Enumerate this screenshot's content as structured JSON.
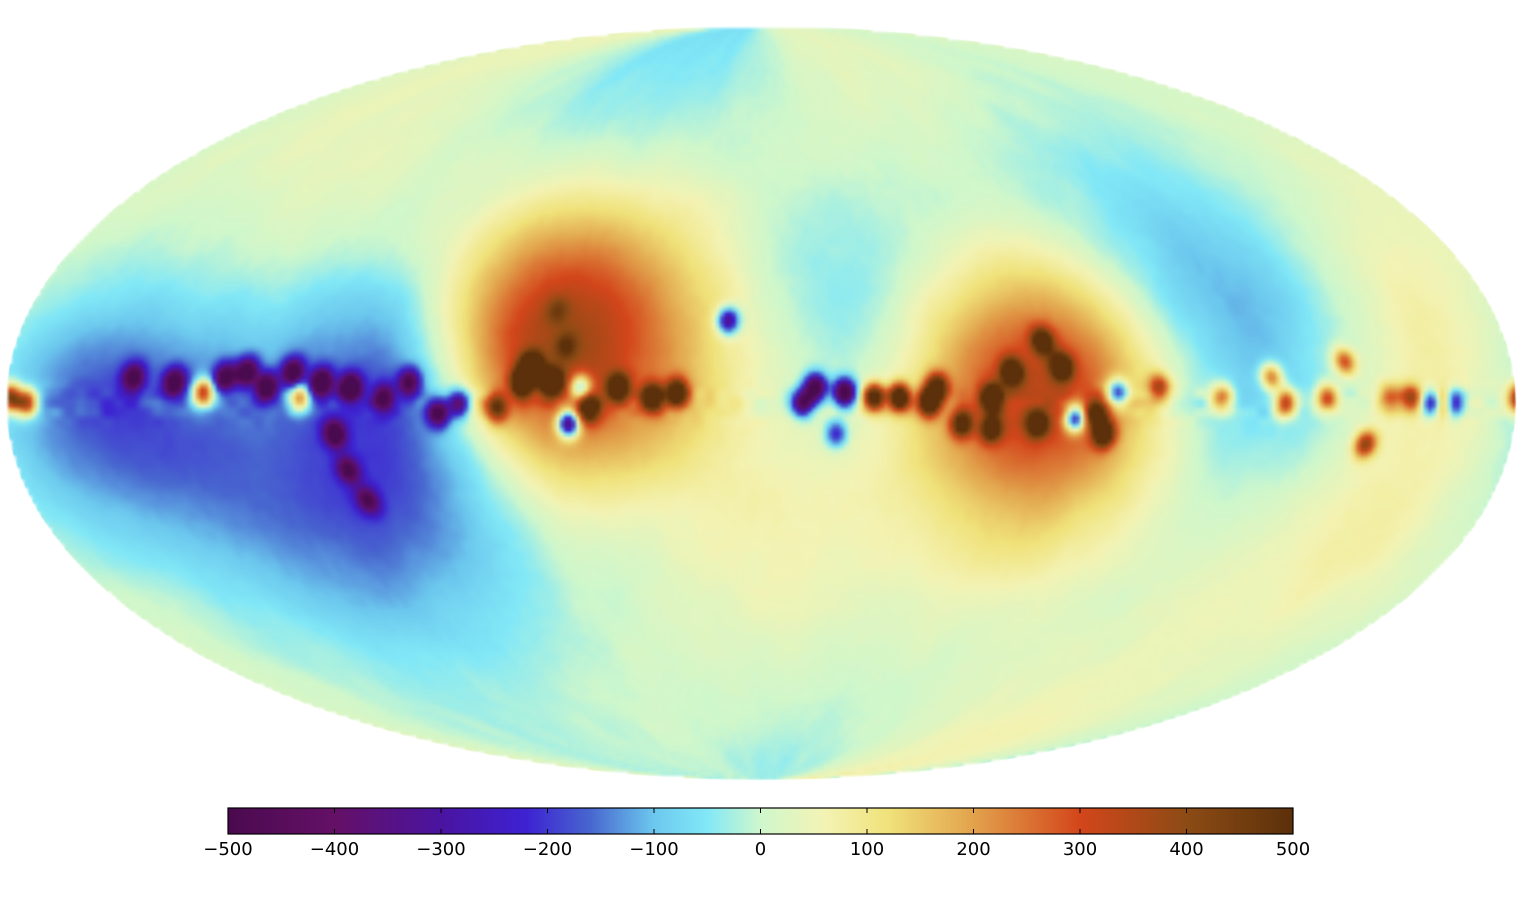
{
  "chart_data": {
    "type": "heatmap",
    "projection": "mollweide",
    "title": "",
    "colorbar": {
      "orientation": "horizontal",
      "placement": "bottom",
      "vmin": -500,
      "vmax": 500,
      "ticks": [
        -500,
        -400,
        -300,
        -200,
        -100,
        0,
        100,
        200,
        300,
        400,
        500
      ],
      "tick_labels": [
        "−500",
        "−400",
        "−300",
        "−200",
        "−100",
        "0",
        "100",
        "200",
        "300",
        "400",
        "500"
      ],
      "colormap": [
        [
          0.0,
          "#4a0a4f"
        ],
        [
          0.1,
          "#641066"
        ],
        [
          0.2,
          "#4a14a0"
        ],
        [
          0.28,
          "#3d22d2"
        ],
        [
          0.34,
          "#4866cf"
        ],
        [
          0.4,
          "#6cc8ee"
        ],
        [
          0.45,
          "#82e8f7"
        ],
        [
          0.5,
          "#cff7cc"
        ],
        [
          0.56,
          "#f3f3b4"
        ],
        [
          0.62,
          "#f0e27a"
        ],
        [
          0.7,
          "#e2a24c"
        ],
        [
          0.8,
          "#d3461b"
        ],
        [
          0.9,
          "#8c4b15"
        ],
        [
          1.0,
          "#5c300a"
        ]
      ]
    },
    "sources": [
      {
        "lon": 179,
        "lat": 1,
        "value": 380
      },
      {
        "lon": 175,
        "lat": 0,
        "value": 340
      },
      {
        "lon": 150,
        "lat": 5,
        "value": -330
      },
      {
        "lon": 140,
        "lat": 4,
        "value": -380
      },
      {
        "lon": 133,
        "lat": 2,
        "value": 370
      },
      {
        "lon": 128,
        "lat": 5,
        "value": -360
      },
      {
        "lon": 123,
        "lat": 6,
        "value": -400
      },
      {
        "lon": 118,
        "lat": 3,
        "value": -420
      },
      {
        "lon": 112,
        "lat": 6,
        "value": -380
      },
      {
        "lon": 105,
        "lat": 4,
        "value": -420
      },
      {
        "lon": 98,
        "lat": 3,
        "value": -440
      },
      {
        "lon": 102,
        "lat": -6,
        "value": -360
      },
      {
        "lon": 100,
        "lat": -13,
        "value": -280
      },
      {
        "lon": 97,
        "lat": -19,
        "value": -260
      },
      {
        "lon": 84,
        "lat": 4,
        "value": -320
      },
      {
        "lon": 77,
        "lat": -2,
        "value": -360
      },
      {
        "lon": 72,
        "lat": 0,
        "value": -300
      },
      {
        "lon": 63,
        "lat": -1,
        "value": 280
      },
      {
        "lon": 57,
        "lat": 4,
        "value": 440
      },
      {
        "lon": 55,
        "lat": 7,
        "value": 460
      },
      {
        "lon": 50,
        "lat": 4,
        "value": 430
      },
      {
        "lon": 47,
        "lat": 11,
        "value": 120
      },
      {
        "lon": 50,
        "lat": 18,
        "value": 90
      },
      {
        "lon": 46,
        "lat": -4,
        "value": -460
      },
      {
        "lon": 43,
        "lat": 3,
        "value": -280
      },
      {
        "lon": 41,
        "lat": -1,
        "value": 340
      },
      {
        "lon": 34,
        "lat": 3,
        "value": 360
      },
      {
        "lon": 26,
        "lat": 1,
        "value": 420
      },
      {
        "lon": 20,
        "lat": 2,
        "value": 400
      },
      {
        "lon": 8,
        "lat": 16,
        "value": -320
      },
      {
        "lon": -10,
        "lat": 0,
        "value": -360
      },
      {
        "lon": -13,
        "lat": 3,
        "value": -440
      },
      {
        "lon": -20,
        "lat": 2,
        "value": -480
      },
      {
        "lon": -18,
        "lat": -6,
        "value": -200
      },
      {
        "lon": -27,
        "lat": 1,
        "value": 460
      },
      {
        "lon": -33,
        "lat": 1,
        "value": 480
      },
      {
        "lon": -40,
        "lat": 0,
        "value": 460
      },
      {
        "lon": -42,
        "lat": 3,
        "value": 380
      },
      {
        "lon": -48,
        "lat": -4,
        "value": 320
      },
      {
        "lon": -55,
        "lat": 1,
        "value": 400
      },
      {
        "lon": -55,
        "lat": -5,
        "value": 300
      },
      {
        "lon": -60,
        "lat": 6,
        "value": 340
      },
      {
        "lon": -66,
        "lat": -4,
        "value": 320
      },
      {
        "lon": -68,
        "lat": 12,
        "value": 300
      },
      {
        "lon": -72,
        "lat": 7,
        "value": 350
      },
      {
        "lon": -75,
        "lat": -3,
        "value": -380
      },
      {
        "lon": -80,
        "lat": -2,
        "value": 330
      },
      {
        "lon": -82,
        "lat": -6,
        "value": 380
      },
      {
        "lon": -85,
        "lat": 2,
        "value": -300
      },
      {
        "lon": -95,
        "lat": 3,
        "value": 240
      },
      {
        "lon": -110,
        "lat": 1,
        "value": 220
      },
      {
        "lon": -122,
        "lat": 5,
        "value": 240
      },
      {
        "lon": -125,
        "lat": 0,
        "value": 300
      },
      {
        "lon": -135,
        "lat": 1,
        "value": 260
      },
      {
        "lon": -140,
        "lat": 8,
        "value": 230
      },
      {
        "lon": -150,
        "lat": 1,
        "value": 200
      },
      {
        "lon": -145,
        "lat": -8,
        "value": 280
      },
      {
        "lon": -155,
        "lat": 1,
        "value": 240
      },
      {
        "lon": -160,
        "lat": 0,
        "value": -300
      },
      {
        "lon": -163,
        "lat": 0,
        "value": 300
      },
      {
        "lon": -165,
        "lat": 0,
        "value": -340
      },
      {
        "lon": 110,
        "lat": 1,
        "value": 300
      },
      {
        "lon": 90,
        "lat": 1,
        "value": -300
      }
    ],
    "regions": [
      {
        "lon": 52,
        "lat": 20,
        "value": 80
      },
      {
        "lon": 55,
        "lat": 8,
        "value": 150
      },
      {
        "lon": 30,
        "lat": 8,
        "value": 130
      },
      {
        "lon": 60,
        "lat": 12,
        "value": 110
      },
      {
        "lon": -50,
        "lat": 6,
        "value": 140
      },
      {
        "lon": -65,
        "lat": 7,
        "value": 150
      },
      {
        "lon": -80,
        "lat": 4,
        "value": 120
      },
      {
        "lon": -75,
        "lat": -8,
        "value": 70
      },
      {
        "lon": -155,
        "lat": -18,
        "value": 60
      },
      {
        "lon": -160,
        "lat": 12,
        "value": 70
      },
      {
        "lon": 160,
        "lat": 0,
        "value": -130
      },
      {
        "lon": 145,
        "lat": -10,
        "value": -90
      },
      {
        "lon": 120,
        "lat": -20,
        "value": -70
      },
      {
        "lon": 100,
        "lat": -30,
        "value": -60
      },
      {
        "lon": 125,
        "lat": 12,
        "value": -60
      },
      {
        "lon": 80,
        "lat": -10,
        "value": -80
      },
      {
        "lon": 90,
        "lat": 6,
        "value": -150
      },
      {
        "lon": 70,
        "lat": -14,
        "value": -60
      },
      {
        "lon": 150,
        "lat": -22,
        "value": 50
      },
      {
        "lon": 155,
        "lat": 14,
        "value": 30
      },
      {
        "lon": 120,
        "lat": 25,
        "value": 40
      },
      {
        "lon": 20,
        "lat": 20,
        "value": 20
      },
      {
        "lon": -30,
        "lat": 20,
        "value": -60
      },
      {
        "lon": -55,
        "lat": 22,
        "value": -60
      },
      {
        "lon": -100,
        "lat": 25,
        "value": -40
      },
      {
        "lon": -120,
        "lat": 15,
        "value": -50
      },
      {
        "lon": -15,
        "lat": 20,
        "value": -50
      },
      {
        "lon": -10,
        "lat": -20,
        "value": 30
      },
      {
        "lon": 30,
        "lat": -25,
        "value": -30
      },
      {
        "lon": -60,
        "lat": -30,
        "value": 40
      },
      {
        "lon": -140,
        "lat": -30,
        "value": 40
      },
      {
        "lon": -160,
        "lat": 30,
        "value": 30
      },
      {
        "lon": 0,
        "lat": -45,
        "value": 30
      }
    ]
  }
}
